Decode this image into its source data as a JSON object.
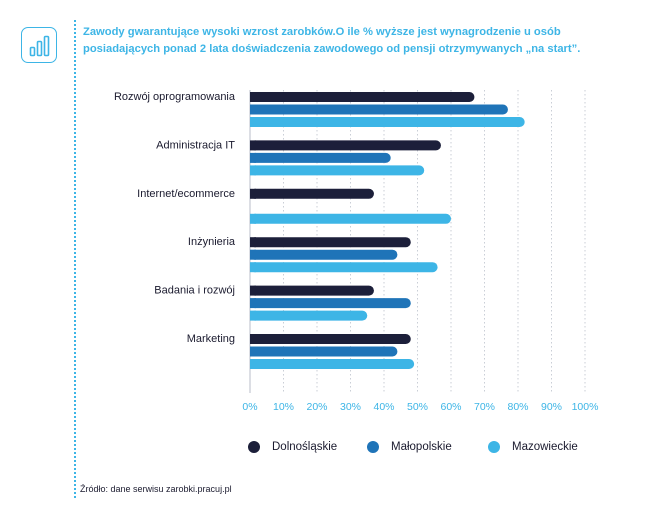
{
  "title": "Zawody gwarantujące wysoki wzrost zarobków.O ile % wyższe jest wynagrodzenie u osób posiadających ponad 2 lata doświadczenia zawodowego od pensji otrzymywanych „na start”.",
  "icon": "bar-chart-icon",
  "source": "Źródło: dane serwisu zarobki.pracuj.pl",
  "colors": {
    "accent": "#3db5e6",
    "text": "#1a1a2e",
    "grid": "#c9ced6"
  },
  "chart_data": {
    "type": "bar",
    "orientation": "horizontal",
    "categories": [
      "Rozwój oprogramowania",
      "Administracja IT",
      "Internet/ecommerce",
      "Inżynieria",
      "Badania i rozwój",
      "Marketing"
    ],
    "series": [
      {
        "name": "Dolnośląskie",
        "color": "#1c1f3a",
        "values": [
          67,
          57,
          37,
          48,
          37,
          48
        ]
      },
      {
        "name": "Małopolskie",
        "color": "#1f74b8",
        "values": [
          77,
          42,
          null,
          44,
          48,
          44
        ]
      },
      {
        "name": "Mazowieckie",
        "color": "#3db5e6",
        "values": [
          82,
          52,
          60,
          56,
          35,
          49
        ]
      }
    ],
    "xlim": [
      0,
      100
    ],
    "xticks": [
      "0%",
      "10%",
      "20%",
      "30%",
      "40%",
      "50%",
      "60%",
      "70%",
      "80%",
      "90%",
      "100%"
    ],
    "grid": "vertical dotted",
    "legend": "bottom"
  }
}
